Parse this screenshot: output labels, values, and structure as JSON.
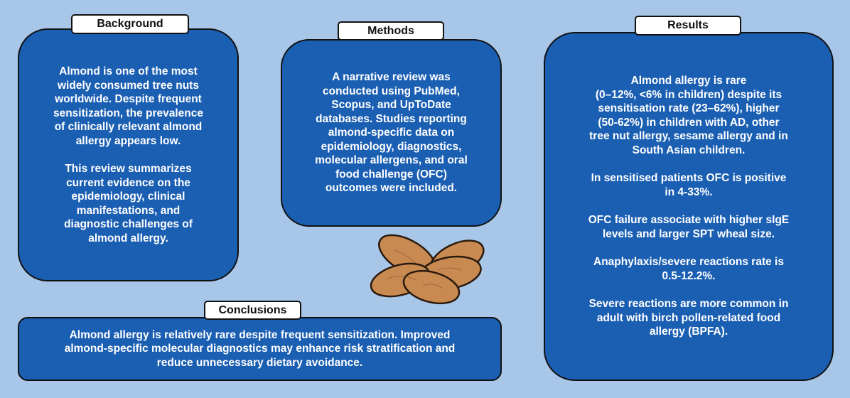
{
  "background": {
    "title": "Background",
    "paragraphs": [
      [
        "Almond is one of the most",
        "widely consumed tree nuts",
        "worldwide. Despite frequent",
        "sensitization, the prevalence",
        "of clinically relevant almond",
        "allergy appears low."
      ],
      [
        "This review summarizes",
        "current evidence on the",
        "epidemiology, clinical",
        "manifestations, and",
        "diagnostic challenges of",
        "almond allergy."
      ]
    ]
  },
  "methods": {
    "title": "Methods",
    "paragraphs": [
      [
        "A narrative review was",
        "conducted using PubMed,",
        "Scopus, and UpToDate",
        "databases. Studies reporting",
        "almond-specific data on",
        "epidemiology, diagnostics,",
        "molecular allergens, and oral",
        "food challenge (OFC)",
        "outcomes were included."
      ]
    ]
  },
  "results": {
    "title": "Results",
    "paragraphs": [
      [
        "Almond allergy is rare",
        "(0–12%, <6% in children) despite its",
        "sensitisation rate (23–62%), higher",
        "(50-62%) in children with AD, other",
        "tree nut allergy, sesame allergy and in",
        "South Asian children."
      ],
      [
        "In sensitised patients OFC is positive",
        "in 4-33%."
      ],
      [
        "OFC failure associate with higher sIgE",
        "levels and larger SPT wheal size."
      ],
      [
        "Anaphylaxis/severe reactions rate is",
        "0.5-12.2%."
      ],
      [
        "Severe reactions are more common in",
        "adult with birch pollen-related food",
        "allergy (BPFA)."
      ]
    ]
  },
  "conclusions": {
    "title": "Conclusions",
    "paragraphs": [
      [
        "Almond allergy is relatively rare despite frequent sensitization. Improved",
        "almond-specific molecular diagnostics may enhance risk stratification and",
        "reduce unnecessary dietary avoidance."
      ]
    ]
  }
}
